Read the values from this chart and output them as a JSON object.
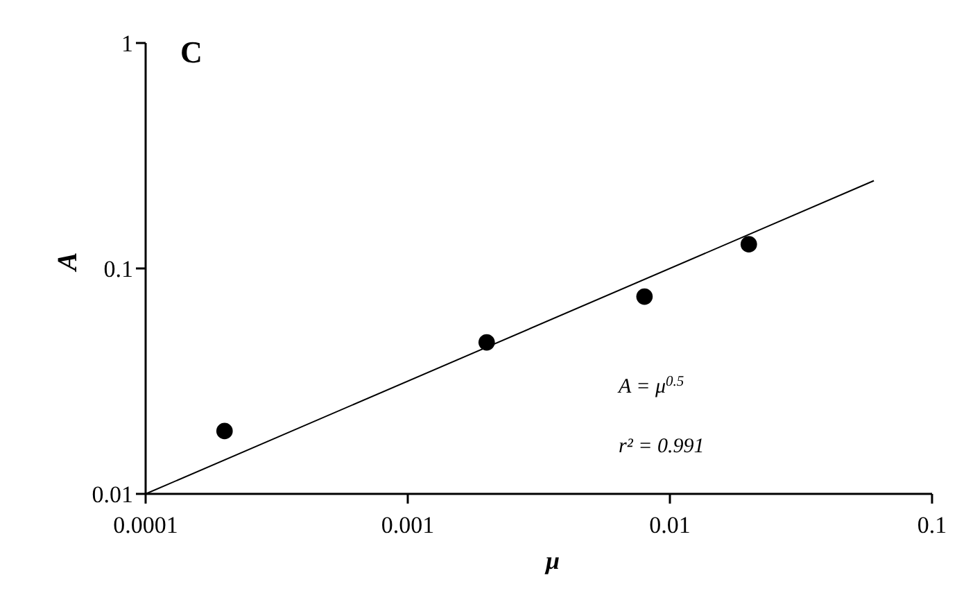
{
  "chart_data": {
    "type": "scatter",
    "title": "C",
    "xlabel": "μ",
    "ylabel": "A",
    "log": "xy",
    "grid": false,
    "xlim": [
      0.0001,
      0.1
    ],
    "ylim": [
      0.01,
      1
    ],
    "xticks": [
      0.0001,
      0.001,
      0.01,
      0.1
    ],
    "yticks": [
      0.01,
      0.1,
      1
    ],
    "series": [
      {
        "color": "#000000",
        "marker": "circle",
        "x": [
          0.0002,
          0.002,
          0.008,
          0.02
        ],
        "values": [
          0.019,
          0.047,
          0.075,
          0.128
        ]
      },
      {
        "type": "line",
        "color": "#000000",
        "marker": "none",
        "x": [
          0.0001,
          0.06
        ],
        "values": [
          0.01,
          0.245
        ]
      }
    ],
    "annotations": [
      "A = μ$^{0.5}$",
      "r² = 0.991"
    ]
  }
}
